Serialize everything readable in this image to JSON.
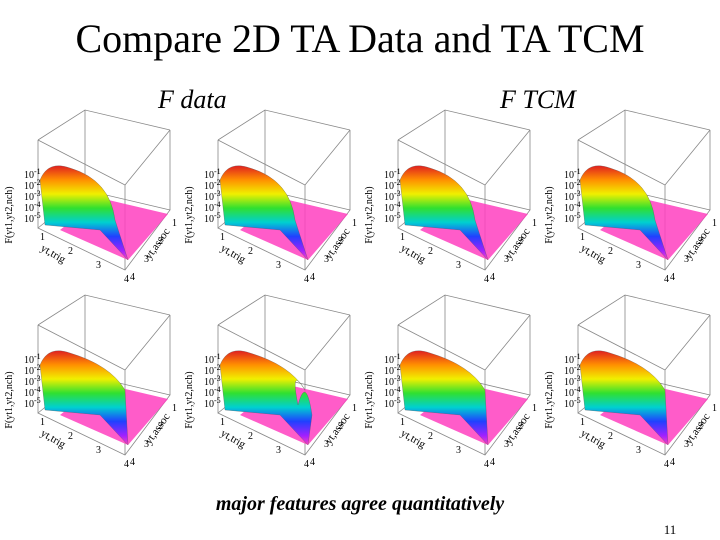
{
  "title": "Compare 2D TA Data and TA TCM",
  "column_labels": [
    "F  data",
    "F  TCM"
  ],
  "panel_axes": {
    "z_label": "F(yt1,yt2,nch)",
    "z_ticks": [
      {
        "base": "10",
        "exp": "-1"
      },
      {
        "base": "10",
        "exp": "-2"
      },
      {
        "base": "10",
        "exp": "-3"
      },
      {
        "base": "10",
        "exp": "-4"
      },
      {
        "base": "10",
        "exp": "-5"
      }
    ],
    "x_label": "yt,trig",
    "y_label": "yt,assoc",
    "x_ticks": [
      "1",
      "2",
      "3",
      "4"
    ],
    "y_ticks": [
      "1",
      "2",
      "3",
      "4"
    ]
  },
  "caption": "major features agree quantitatively",
  "page_number": "11"
}
